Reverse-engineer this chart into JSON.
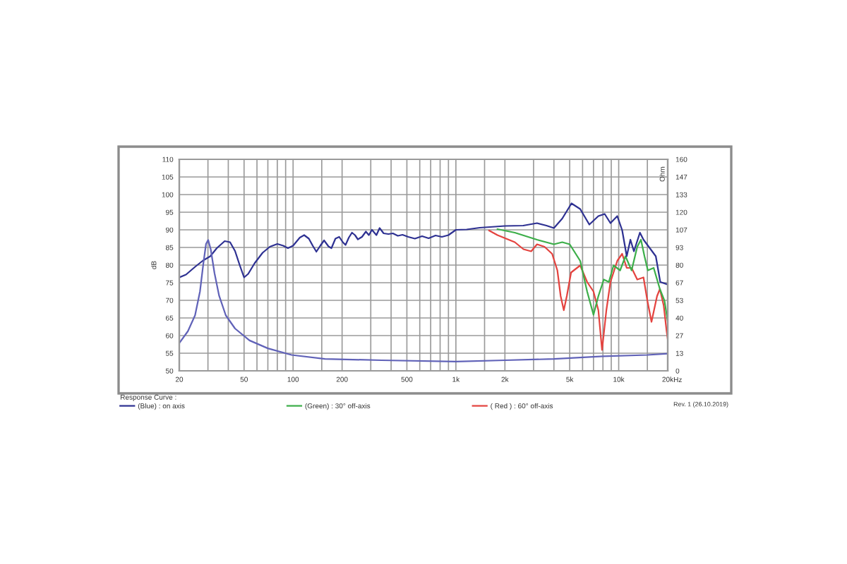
{
  "chart_data": {
    "type": "line",
    "xlabel": "Hz",
    "ylabel": "dB",
    "y2label": "Ohm",
    "legend_title": "Response Curve :",
    "annotations": [
      "Rev. 1 (26.10.2019)"
    ],
    "log": "x",
    "xlim": [
      20,
      20000
    ],
    "xticks": [
      20,
      {
        "value": 30,
        "label": null
      },
      {
        "value": 40,
        "label": null
      },
      50,
      {
        "value": 60,
        "label": null
      },
      {
        "value": 70,
        "label": null
      },
      {
        "value": 80,
        "label": null
      },
      {
        "value": 90,
        "label": null
      },
      100,
      {
        "value": 150,
        "label": null
      },
      200,
      {
        "value": 300,
        "label": null
      },
      {
        "value": 400,
        "label": null
      },
      500,
      {
        "value": 600,
        "label": null
      },
      {
        "value": 700,
        "label": null
      },
      {
        "value": 800,
        "label": null
      },
      {
        "value": 900,
        "label": null
      },
      {
        "value": 1000,
        "label": "1k"
      },
      {
        "value": 1500,
        "label": null
      },
      {
        "value": 2000,
        "label": "2k"
      },
      {
        "value": 3000,
        "label": null
      },
      {
        "value": 4000,
        "label": null
      },
      {
        "value": 5000,
        "label": "5k"
      },
      {
        "value": 6000,
        "label": null
      },
      {
        "value": 7000,
        "label": null
      },
      {
        "value": 8000,
        "label": null
      },
      {
        "value": 9000,
        "label": null
      },
      {
        "value": 10000,
        "label": "10k"
      },
      {
        "value": 15000,
        "label": null
      },
      {
        "value": 20000,
        "label": "20k"
      }
    ],
    "ylim": [
      50,
      110
    ],
    "yticks": [
      50,
      55,
      60,
      65,
      70,
      75,
      80,
      85,
      90,
      95,
      100,
      105,
      110
    ],
    "y2lim": [
      0,
      160
    ],
    "y2ticks": [
      0,
      {
        "value": 13.33,
        "label": "13"
      },
      {
        "value": 26.67,
        "label": "27"
      },
      40,
      {
        "value": 53.33,
        "label": "53"
      },
      {
        "value": 66.67,
        "label": "67"
      },
      80,
      {
        "value": 93.33,
        "label": "93"
      },
      {
        "value": 106.67,
        "label": "107"
      },
      120,
      {
        "value": 133.33,
        "label": "133"
      },
      {
        "value": 146.67,
        "label": "147"
      },
      160
    ],
    "grid": true,
    "legend": "bottom",
    "line_style": "solid",
    "series": [
      {
        "name": "(Blue) : on axis",
        "color": "#2e3192",
        "x": [
          20,
          22,
          25,
          28,
          31,
          34,
          38,
          41,
          44,
          47,
          50,
          53,
          58,
          65,
          72,
          80,
          87,
          93,
          100,
          110,
          117,
          125,
          132,
          139,
          147,
          155,
          165,
          172,
          182,
          192,
          202,
          210,
          220,
          230,
          240,
          250,
          265,
          280,
          292,
          305,
          325,
          340,
          360,
          385,
          410,
          440,
          470,
          510,
          560,
          620,
          680,
          750,
          820,
          900,
          1000,
          1165,
          1400,
          1740,
          2000,
          2590,
          3150,
          3600,
          4000,
          4500,
          5130,
          5800,
          6600,
          7500,
          8200,
          8900,
          9800,
          10500,
          11200,
          11800,
          12400,
          13500,
          14200,
          15700,
          16900,
          18000,
          20000
        ],
        "values": [
          76.5,
          77.3,
          79.5,
          81.3,
          82.5,
          84.8,
          86.8,
          86.5,
          84,
          80,
          76.5,
          77.5,
          80.5,
          83.5,
          85.2,
          86,
          85.5,
          84.8,
          85.5,
          87.8,
          88.5,
          87.5,
          85.5,
          83.8,
          85.5,
          87,
          85.3,
          84.8,
          87.5,
          88,
          86.5,
          85.7,
          87.8,
          89.2,
          88.5,
          87.3,
          88,
          89.5,
          88.5,
          90,
          88.5,
          90.5,
          89,
          88.8,
          89,
          88.3,
          88.6,
          88,
          87.5,
          88.2,
          87.6,
          88.4,
          88,
          88.5,
          90,
          90.1,
          90.6,
          90.9,
          91.1,
          91.2,
          91.9,
          91.2,
          90.5,
          93.2,
          97.5,
          95.9,
          91.5,
          93.9,
          94.5,
          91.9,
          93.9,
          89.9,
          82.5,
          87.2,
          83.9,
          89.2,
          87.2,
          84.5,
          82.5,
          75.2,
          74.5
        ]
      },
      {
        "name": "(Green) : 30° off-axis",
        "color": "#3cae49",
        "x": [
          1800,
          2300,
          3150,
          4000,
          4500,
          5000,
          5800,
          6400,
          7000,
          7500,
          8100,
          8700,
          9300,
          10200,
          11000,
          12000,
          13000,
          13700,
          14400,
          15100,
          16400,
          17900,
          19100,
          20000
        ],
        "values": [
          90.2,
          89.2,
          87.2,
          85.9,
          86.5,
          85.9,
          81.2,
          72.5,
          65.9,
          71.2,
          75.9,
          75.2,
          79.9,
          78.5,
          82.5,
          78.5,
          85.2,
          87.2,
          82.5,
          78.5,
          79.2,
          73.2,
          69.9,
          64
        ]
      },
      {
        "name": "( Red ) : 60° off-axis",
        "color": "#e4433f",
        "x": [
          1600,
          1800,
          2300,
          2600,
          2900,
          3150,
          3500,
          3900,
          4200,
          4400,
          4600,
          4800,
          5100,
          5800,
          6400,
          7000,
          7500,
          7900,
          8400,
          8900,
          9800,
          10500,
          11200,
          12000,
          13000,
          14200,
          15000,
          15900,
          17200,
          17900,
          18900,
          19700,
          20000
        ],
        "values": [
          89.8,
          88.5,
          86.5,
          84.5,
          83.9,
          85.9,
          85.2,
          83.2,
          78.5,
          71.2,
          67.2,
          71.2,
          77.9,
          79.9,
          75.2,
          72.5,
          67.2,
          55.9,
          67.2,
          75.2,
          81.2,
          83.2,
          79.2,
          79.2,
          75.9,
          76.5,
          69.9,
          63.9,
          71.2,
          73.2,
          68.5,
          61.2,
          59
        ]
      },
      {
        "color": "#6062b8",
        "axis": "y2",
        "x": [
          20,
          22.6,
          25,
          26.8,
          28.1,
          29.2,
          30.1,
          31.2,
          32.9,
          35.1,
          38.6,
          44,
          54,
          70,
          98,
          157,
          350,
          1000,
          2000,
          4000,
          8000,
          15000,
          20000
        ],
        "values": [
          21,
          30,
          42,
          60,
          81,
          96,
          99,
          92,
          74,
          57,
          42,
          32,
          23,
          17,
          12,
          9,
          8,
          7,
          8,
          9,
          11,
          12,
          13
        ]
      }
    ]
  }
}
